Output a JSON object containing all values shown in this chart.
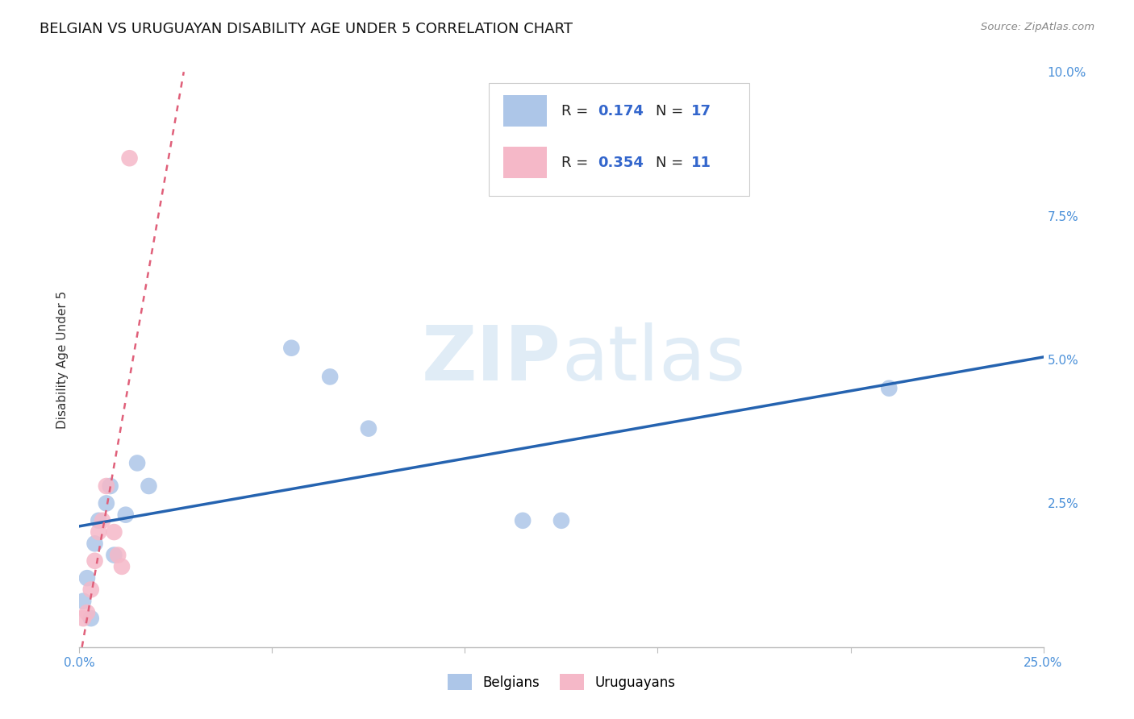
{
  "title": "BELGIAN VS URUGUAYAN DISABILITY AGE UNDER 5 CORRELATION CHART",
  "source": "Source: ZipAtlas.com",
  "ylabel_label": "Disability Age Under 5",
  "xlim": [
    0.0,
    0.25
  ],
  "ylim": [
    0.0,
    0.1
  ],
  "xticks": [
    0.0,
    0.05,
    0.1,
    0.15,
    0.2,
    0.25
  ],
  "xtick_labels": [
    "0.0%",
    "",
    "",
    "",
    "",
    "25.0%"
  ],
  "yticks": [
    0.0,
    0.025,
    0.05,
    0.075,
    0.1
  ],
  "ytick_labels": [
    "",
    "2.5%",
    "5.0%",
    "7.5%",
    "10.0%"
  ],
  "belgian_R": 0.174,
  "belgian_N": 17,
  "uruguayan_R": 0.354,
  "uruguayan_N": 11,
  "belgian_color": "#adc6e8",
  "uruguayan_color": "#f5b8c8",
  "belgian_line_color": "#2563b0",
  "uruguayan_line_color": "#e0607a",
  "watermark_zip": "ZIP",
  "watermark_atlas": "atlas",
  "belgian_x": [
    0.001,
    0.002,
    0.003,
    0.004,
    0.005,
    0.007,
    0.008,
    0.009,
    0.012,
    0.015,
    0.018,
    0.055,
    0.065,
    0.075,
    0.115,
    0.125,
    0.21
  ],
  "belgian_y": [
    0.008,
    0.012,
    0.005,
    0.018,
    0.022,
    0.025,
    0.028,
    0.016,
    0.023,
    0.032,
    0.028,
    0.052,
    0.047,
    0.038,
    0.022,
    0.022,
    0.045
  ],
  "uruguayan_x": [
    0.001,
    0.002,
    0.003,
    0.004,
    0.005,
    0.006,
    0.007,
    0.009,
    0.01,
    0.011,
    0.013
  ],
  "uruguayan_y": [
    0.005,
    0.006,
    0.01,
    0.015,
    0.02,
    0.022,
    0.028,
    0.02,
    0.016,
    0.014,
    0.085
  ],
  "grid_color": "#cccccc",
  "background_color": "#ffffff",
  "title_fontsize": 13,
  "axis_label_fontsize": 11,
  "tick_fontsize": 11,
  "tick_color": "#4a90d9",
  "legend_fontsize": 13,
  "text_color_dark": "#222222",
  "text_color_blue": "#3366cc"
}
